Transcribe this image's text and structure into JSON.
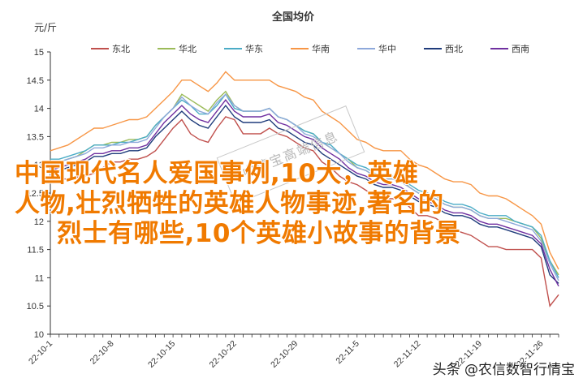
{
  "chart_data": {
    "type": "line",
    "title": "全国均价",
    "ylabel": "元/斤",
    "ylim": [
      10,
      15
    ],
    "yticks": [
      "10",
      "10.5",
      "11",
      "11.5",
      "12",
      "12.5",
      "13",
      "13.5",
      "14",
      "14.5",
      "15"
    ],
    "xtick_labels": [
      "22-10-1",
      "22-10-8",
      "22-10-15",
      "22-10-22",
      "22-10-29",
      "22-11-5",
      "22-11-12",
      "22-11-19",
      "22-11-26"
    ],
    "x": [
      "22-10-1",
      "22-10-2",
      "22-10-3",
      "22-10-4",
      "22-10-5",
      "22-10-6",
      "22-10-7",
      "22-10-8",
      "22-10-9",
      "22-10-10",
      "22-10-11",
      "22-10-12",
      "22-10-13",
      "22-10-14",
      "22-10-15",
      "22-10-16",
      "22-10-17",
      "22-10-18",
      "22-10-19",
      "22-10-20",
      "22-10-21",
      "22-10-22",
      "22-10-23",
      "22-10-24",
      "22-10-25",
      "22-10-26",
      "22-10-27",
      "22-10-28",
      "22-10-29",
      "22-10-30",
      "22-10-31",
      "22-11-1",
      "22-11-2",
      "22-11-3",
      "22-11-4",
      "22-11-5",
      "22-11-6",
      "22-11-7",
      "22-11-8",
      "22-11-9",
      "22-11-10",
      "22-11-11",
      "22-11-12",
      "22-11-13",
      "22-11-14",
      "22-11-15",
      "22-11-16",
      "22-11-17",
      "22-11-18",
      "22-11-19",
      "22-11-20",
      "22-11-21",
      "22-11-22",
      "22-11-23",
      "22-11-24",
      "22-11-25",
      "22-11-26",
      "22-11-27",
      "22-11-28"
    ],
    "series": [
      {
        "name": "东北",
        "color": "#c0504d",
        "values": [
          12.7,
          12.75,
          12.75,
          12.78,
          12.8,
          12.85,
          12.95,
          13.05,
          13.05,
          13.1,
          13.1,
          13.15,
          13.25,
          13.45,
          13.65,
          13.8,
          13.55,
          13.45,
          13.4,
          13.65,
          13.85,
          13.8,
          13.55,
          13.55,
          13.55,
          13.65,
          13.55,
          13.5,
          13.4,
          13.3,
          13.25,
          13.05,
          12.95,
          12.8,
          12.7,
          12.65,
          12.55,
          12.45,
          12.4,
          12.4,
          12.4,
          12.25,
          12.1,
          12.1,
          12.05,
          11.95,
          11.85,
          11.8,
          11.75,
          11.65,
          11.55,
          11.55,
          11.5,
          11.5,
          11.5,
          11.5,
          11.35,
          10.5,
          10.7
        ]
      },
      {
        "name": "华北",
        "color": "#9bbb59",
        "values": [
          13.05,
          13.05,
          13.1,
          13.15,
          13.25,
          13.35,
          13.35,
          13.4,
          13.4,
          13.45,
          13.45,
          13.5,
          13.7,
          13.85,
          14.0,
          14.25,
          14.15,
          14.05,
          13.95,
          14.15,
          14.3,
          14.05,
          13.95,
          13.95,
          13.95,
          14.0,
          13.85,
          13.8,
          13.7,
          13.6,
          13.55,
          13.4,
          13.3,
          13.2,
          13.1,
          12.95,
          12.9,
          12.8,
          12.75,
          12.75,
          12.75,
          12.6,
          12.5,
          12.45,
          12.4,
          12.3,
          12.25,
          12.25,
          12.2,
          12.1,
          12.05,
          12.05,
          12.05,
          12.0,
          11.95,
          11.9,
          11.7,
          11.3,
          11.05
        ]
      },
      {
        "name": "华东",
        "color": "#4bacc6",
        "values": [
          13.1,
          13.1,
          13.15,
          13.2,
          13.25,
          13.35,
          13.35,
          13.35,
          13.4,
          13.4,
          13.45,
          13.5,
          13.7,
          13.85,
          14.0,
          14.15,
          14.05,
          13.9,
          13.9,
          14.05,
          14.25,
          14.0,
          13.95,
          13.95,
          13.95,
          14.0,
          13.85,
          13.8,
          13.7,
          13.6,
          13.55,
          13.4,
          13.35,
          13.2,
          13.1,
          13.0,
          12.95,
          12.85,
          12.8,
          12.8,
          12.75,
          12.65,
          12.55,
          12.5,
          12.45,
          12.35,
          12.3,
          12.3,
          12.25,
          12.15,
          12.1,
          12.1,
          12.1,
          12.0,
          11.95,
          11.9,
          11.75,
          11.3,
          11.0
        ]
      },
      {
        "name": "华南",
        "color": "#f79646",
        "values": [
          13.25,
          13.3,
          13.35,
          13.45,
          13.55,
          13.65,
          13.65,
          13.7,
          13.75,
          13.8,
          13.8,
          13.85,
          14.0,
          14.15,
          14.3,
          14.5,
          14.5,
          14.4,
          14.3,
          14.45,
          14.65,
          14.5,
          14.5,
          14.5,
          14.5,
          14.5,
          14.4,
          14.35,
          14.3,
          14.2,
          14.15,
          13.95,
          13.85,
          13.75,
          13.6,
          13.45,
          13.4,
          13.3,
          13.25,
          13.25,
          13.25,
          13.1,
          13.0,
          12.95,
          12.85,
          12.75,
          12.7,
          12.7,
          12.65,
          12.5,
          12.45,
          12.45,
          12.4,
          12.3,
          12.2,
          12.1,
          11.95,
          11.45,
          11.15
        ]
      },
      {
        "name": "华中",
        "color": "#8ea9db",
        "values": [
          13.0,
          13.05,
          13.1,
          13.15,
          13.2,
          13.3,
          13.3,
          13.35,
          13.35,
          13.4,
          13.4,
          13.45,
          13.65,
          13.85,
          14.0,
          14.2,
          14.05,
          13.95,
          13.9,
          14.1,
          14.25,
          14.05,
          13.95,
          13.95,
          13.95,
          14.0,
          13.85,
          13.8,
          13.7,
          13.55,
          13.5,
          13.4,
          13.3,
          13.2,
          13.05,
          12.95,
          12.9,
          12.8,
          12.75,
          12.75,
          12.7,
          12.6,
          12.5,
          12.45,
          12.4,
          12.3,
          12.25,
          12.25,
          12.2,
          12.1,
          12.05,
          12.05,
          12.0,
          11.95,
          11.9,
          11.85,
          11.65,
          11.25,
          10.95
        ]
      },
      {
        "name": "西北",
        "color": "#1f3c7b",
        "values": [
          12.85,
          12.9,
          12.95,
          13.0,
          13.05,
          13.15,
          13.15,
          13.2,
          13.2,
          13.25,
          13.25,
          13.3,
          13.5,
          13.65,
          13.8,
          13.95,
          13.8,
          13.7,
          13.65,
          13.85,
          14.05,
          13.85,
          13.75,
          13.75,
          13.75,
          13.8,
          13.65,
          13.6,
          13.5,
          13.4,
          13.35,
          13.2,
          13.1,
          13.0,
          12.9,
          12.8,
          12.75,
          12.65,
          12.6,
          12.6,
          12.55,
          12.45,
          12.35,
          12.3,
          12.25,
          12.15,
          12.1,
          12.1,
          12.05,
          11.95,
          11.9,
          11.9,
          11.85,
          11.8,
          11.75,
          11.7,
          11.55,
          11.05,
          10.9
        ]
      },
      {
        "name": "西南",
        "color": "#7030a0",
        "values": [
          12.9,
          12.95,
          13.0,
          13.05,
          13.1,
          13.2,
          13.2,
          13.25,
          13.25,
          13.3,
          13.3,
          13.35,
          13.55,
          13.75,
          13.9,
          14.05,
          13.9,
          13.8,
          13.75,
          13.95,
          14.15,
          13.95,
          13.85,
          13.85,
          13.85,
          13.9,
          13.75,
          13.7,
          13.6,
          13.5,
          13.45,
          13.3,
          13.2,
          13.1,
          12.95,
          12.85,
          12.8,
          12.7,
          12.65,
          12.65,
          12.6,
          12.5,
          12.4,
          12.35,
          12.3,
          12.2,
          12.15,
          12.15,
          12.1,
          12.0,
          11.95,
          11.95,
          11.9,
          11.85,
          11.8,
          11.75,
          11.6,
          11.15,
          10.85
        ]
      }
    ],
    "legend_position": "top",
    "grid": false
  },
  "overlay": {
    "line1": "中国现代名人爱国事例,10大，英雄",
    "line2": "人物,壮烈牺牲的英雄人物事迹,著名的",
    "line3": "烈士有哪些,10个英雄小故事的背景"
  },
  "stamp_text": "中情宝高端信息",
  "watermark": "头条 @农信数智行情宝"
}
